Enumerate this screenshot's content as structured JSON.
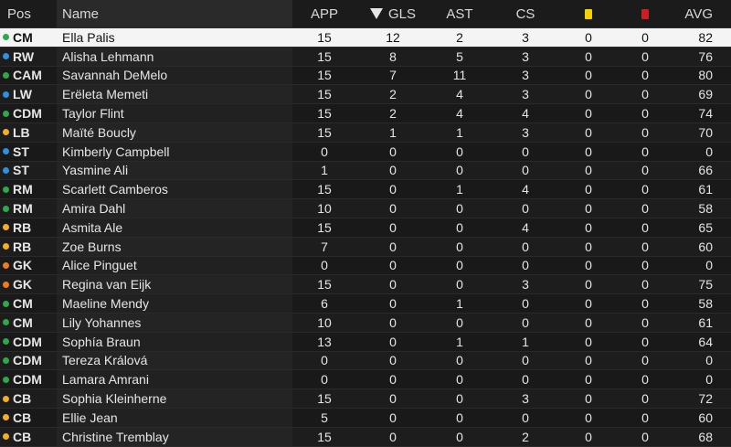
{
  "colors": {
    "position_groups": {
      "GK": "#f07a1c",
      "DEF": "#f2b01e",
      "MID": "#2fa84a",
      "ATT": "#2f8fe0"
    },
    "yellow_card": "#f4d200",
    "red_card": "#cc1f1f",
    "selected_row_bg": "#f4f4f4"
  },
  "header": {
    "pos": "Pos",
    "name": "Name",
    "app": "APP",
    "gls": "GLS",
    "ast": "AST",
    "cs": "CS",
    "avg": "AVG",
    "sort_icon": "sort-descending-triangle-icon",
    "yellow_icon": "yellow-card-icon",
    "red_icon": "red-card-icon"
  },
  "selected_index": 0,
  "players": [
    {
      "pos": "CM",
      "group": "MID",
      "name": "Ella Palis",
      "app": "15",
      "gls": "12",
      "ast": "2",
      "cs": "3",
      "yc": "0",
      "rc": "0",
      "avg": "82"
    },
    {
      "pos": "RW",
      "group": "ATT",
      "name": "Alisha Lehmann",
      "app": "15",
      "gls": "8",
      "ast": "5",
      "cs": "3",
      "yc": "0",
      "rc": "0",
      "avg": "76"
    },
    {
      "pos": "CAM",
      "group": "MID",
      "name": "Savannah DeMelo",
      "app": "15",
      "gls": "7",
      "ast": "11",
      "cs": "3",
      "yc": "0",
      "rc": "0",
      "avg": "80"
    },
    {
      "pos": "LW",
      "group": "ATT",
      "name": "Erëleta Memeti",
      "app": "15",
      "gls": "2",
      "ast": "4",
      "cs": "3",
      "yc": "0",
      "rc": "0",
      "avg": "69"
    },
    {
      "pos": "CDM",
      "group": "MID",
      "name": "Taylor Flint",
      "app": "15",
      "gls": "2",
      "ast": "4",
      "cs": "4",
      "yc": "0",
      "rc": "0",
      "avg": "74"
    },
    {
      "pos": "LB",
      "group": "DEF",
      "name": "Maïté Boucly",
      "app": "15",
      "gls": "1",
      "ast": "1",
      "cs": "3",
      "yc": "0",
      "rc": "0",
      "avg": "70"
    },
    {
      "pos": "ST",
      "group": "ATT",
      "name": "Kimberly Campbell",
      "app": "0",
      "gls": "0",
      "ast": "0",
      "cs": "0",
      "yc": "0",
      "rc": "0",
      "avg": "0"
    },
    {
      "pos": "ST",
      "group": "ATT",
      "name": "Yasmine Ali",
      "app": "1",
      "gls": "0",
      "ast": "0",
      "cs": "0",
      "yc": "0",
      "rc": "0",
      "avg": "66"
    },
    {
      "pos": "RM",
      "group": "MID",
      "name": "Scarlett Camberos",
      "app": "15",
      "gls": "0",
      "ast": "1",
      "cs": "4",
      "yc": "0",
      "rc": "0",
      "avg": "61"
    },
    {
      "pos": "RM",
      "group": "MID",
      "name": "Amira Dahl",
      "app": "10",
      "gls": "0",
      "ast": "0",
      "cs": "0",
      "yc": "0",
      "rc": "0",
      "avg": "58"
    },
    {
      "pos": "RB",
      "group": "DEF",
      "name": "Asmita Ale",
      "app": "15",
      "gls": "0",
      "ast": "0",
      "cs": "4",
      "yc": "0",
      "rc": "0",
      "avg": "65"
    },
    {
      "pos": "RB",
      "group": "DEF",
      "name": "Zoe Burns",
      "app": "7",
      "gls": "0",
      "ast": "0",
      "cs": "0",
      "yc": "0",
      "rc": "0",
      "avg": "60"
    },
    {
      "pos": "GK",
      "group": "GK",
      "name": "Alice Pinguet",
      "app": "0",
      "gls": "0",
      "ast": "0",
      "cs": "0",
      "yc": "0",
      "rc": "0",
      "avg": "0"
    },
    {
      "pos": "GK",
      "group": "GK",
      "name": "Regina van Eijk",
      "app": "15",
      "gls": "0",
      "ast": "0",
      "cs": "3",
      "yc": "0",
      "rc": "0",
      "avg": "75"
    },
    {
      "pos": "CM",
      "group": "MID",
      "name": "Maeline Mendy",
      "app": "6",
      "gls": "0",
      "ast": "1",
      "cs": "0",
      "yc": "0",
      "rc": "0",
      "avg": "58"
    },
    {
      "pos": "CM",
      "group": "MID",
      "name": "Lily Yohannes",
      "app": "10",
      "gls": "0",
      "ast": "0",
      "cs": "0",
      "yc": "0",
      "rc": "0",
      "avg": "61"
    },
    {
      "pos": "CDM",
      "group": "MID",
      "name": "Sophía Braun",
      "app": "13",
      "gls": "0",
      "ast": "1",
      "cs": "1",
      "yc": "0",
      "rc": "0",
      "avg": "64"
    },
    {
      "pos": "CDM",
      "group": "MID",
      "name": "Tereza Králová",
      "app": "0",
      "gls": "0",
      "ast": "0",
      "cs": "0",
      "yc": "0",
      "rc": "0",
      "avg": "0"
    },
    {
      "pos": "CDM",
      "group": "MID",
      "name": "Lamara Amrani",
      "app": "0",
      "gls": "0",
      "ast": "0",
      "cs": "0",
      "yc": "0",
      "rc": "0",
      "avg": "0"
    },
    {
      "pos": "CB",
      "group": "DEF",
      "name": "Sophia Kleinherne",
      "app": "15",
      "gls": "0",
      "ast": "0",
      "cs": "3",
      "yc": "0",
      "rc": "0",
      "avg": "72"
    },
    {
      "pos": "CB",
      "group": "DEF",
      "name": "Ellie Jean",
      "app": "5",
      "gls": "0",
      "ast": "0",
      "cs": "0",
      "yc": "0",
      "rc": "0",
      "avg": "60"
    },
    {
      "pos": "CB",
      "group": "DEF",
      "name": "Christine Tremblay",
      "app": "15",
      "gls": "0",
      "ast": "0",
      "cs": "2",
      "yc": "0",
      "rc": "0",
      "avg": "68"
    }
  ]
}
